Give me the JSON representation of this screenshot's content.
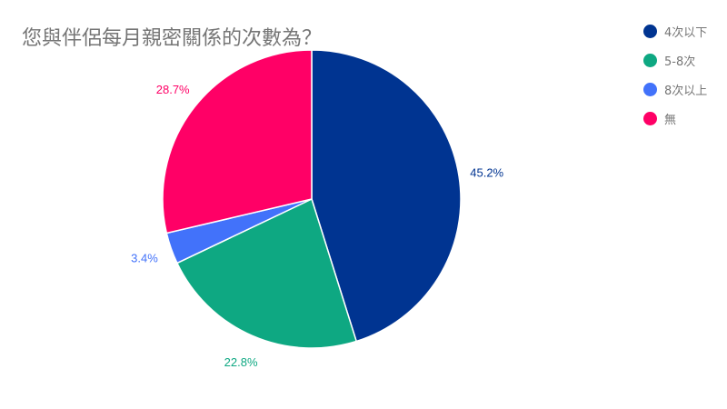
{
  "chart_data": {
    "type": "pie",
    "title": "您與伴侶每月親密關係的次數為？",
    "slices": [
      {
        "label": "4次以下",
        "value": 45.2,
        "display": "45.2%",
        "color": "#003491"
      },
      {
        "label": "5-8次",
        "value": 22.8,
        "display": "22.8%",
        "color": "#0ea882"
      },
      {
        "label": "8次以上",
        "value": 3.4,
        "display": "3.4%",
        "color": "#4272fa"
      },
      {
        "label": "無",
        "value": 28.7,
        "display": "28.7%",
        "color": "#ff0066"
      }
    ],
    "legend_position": "top-right",
    "start_angle": "12-o'clock",
    "direction": "clockwise"
  }
}
